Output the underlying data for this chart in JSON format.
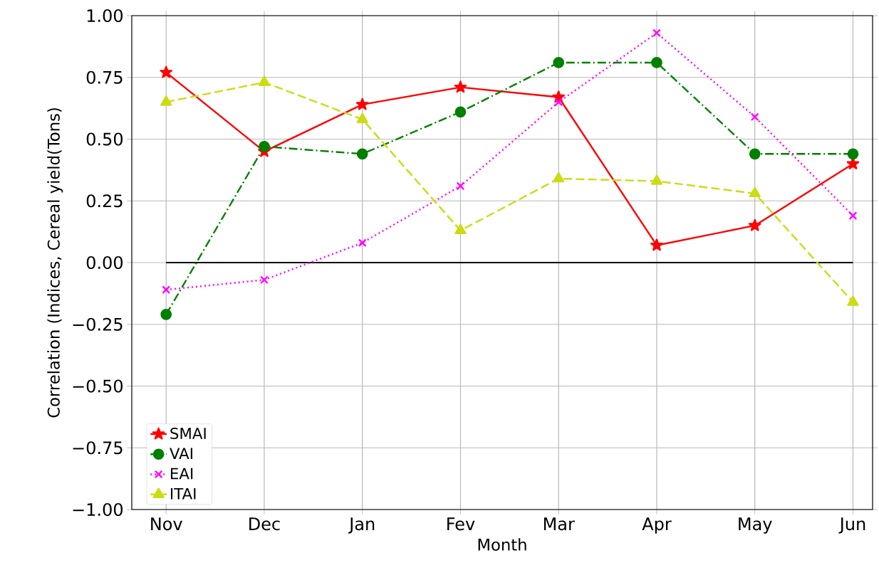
{
  "chart_data": {
    "type": "line",
    "xlabel": "Month",
    "ylabel": "Correlation (Indices, Cereal yield(Tons)",
    "categories": [
      "Nov",
      "Dec",
      "Jan",
      "Fev",
      "Mar",
      "Apr",
      "May",
      "Jun"
    ],
    "series": [
      {
        "name": "SMAI",
        "color": "#ff0000",
        "marker": "star",
        "line_style": "solid",
        "values": [
          0.77,
          0.45,
          0.64,
          0.71,
          0.67,
          0.07,
          0.15,
          0.4
        ]
      },
      {
        "name": "VAI",
        "color": "#008000",
        "marker": "circle",
        "line_style": "dashdot",
        "values": [
          -0.21,
          0.47,
          0.44,
          0.61,
          0.81,
          0.81,
          0.44,
          0.44
        ]
      },
      {
        "name": "EAI",
        "color": "#ff00ff",
        "marker": "cross",
        "line_style": "dotted",
        "values": [
          -0.11,
          -0.07,
          0.08,
          0.31,
          0.65,
          0.93,
          0.59,
          0.19
        ]
      },
      {
        "name": "ITAI",
        "color": "#ccdc14",
        "marker": "triangle",
        "line_style": "dashed",
        "values": [
          0.65,
          0.73,
          0.58,
          0.13,
          0.34,
          0.33,
          0.28,
          -0.16
        ]
      }
    ],
    "ylim": [
      -1,
      1
    ],
    "yticks": [
      {
        "value": -1,
        "label": "−1.00"
      },
      {
        "value": -0.75,
        "label": "−0.75"
      },
      {
        "value": -0.5,
        "label": "−0.50"
      },
      {
        "value": -0.25,
        "label": "−0.25"
      },
      {
        "value": 0,
        "label": "0.00"
      },
      {
        "value": 0.25,
        "label": "0.25"
      },
      {
        "value": 0.5,
        "label": "0.50"
      },
      {
        "value": 0.75,
        "label": "0.75"
      },
      {
        "value": 1,
        "label": "1.00"
      }
    ],
    "ref_lines": [
      {
        "axis": "y",
        "value": 0,
        "color": "#000000"
      }
    ],
    "grid": true,
    "legend": "bottom left"
  }
}
